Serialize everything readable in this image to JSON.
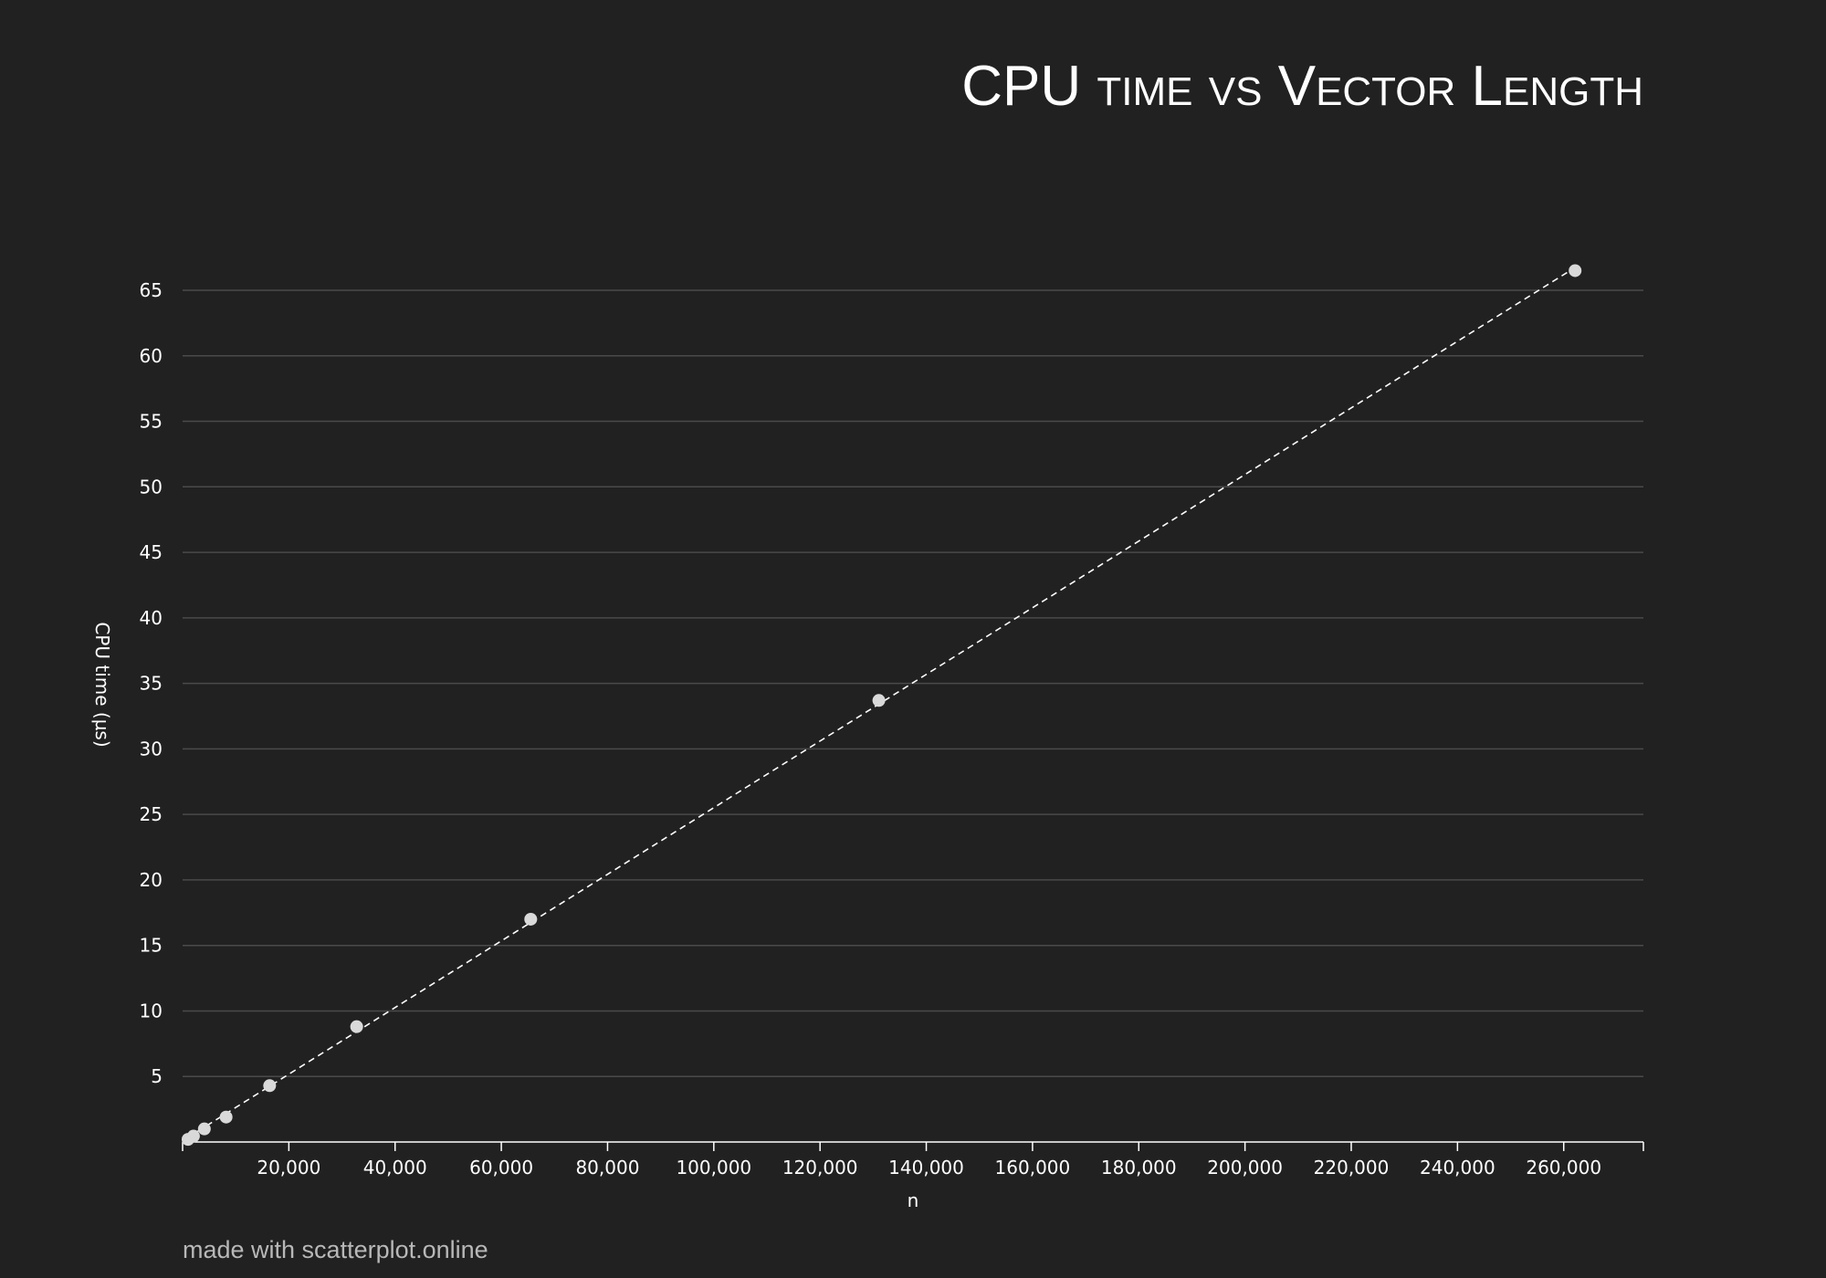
{
  "chart_data": {
    "type": "scatter",
    "title": "CPU time vs Vector Length",
    "xlabel": "n",
    "ylabel": "CPU time (µs)",
    "xlim": [
      0,
      275000
    ],
    "ylim": [
      0,
      65
    ],
    "x_ticks": [
      20000,
      40000,
      60000,
      80000,
      100000,
      120000,
      140000,
      160000,
      180000,
      200000,
      220000,
      240000,
      260000
    ],
    "x_tick_labels": [
      "20,000",
      "40,000",
      "60,000",
      "80,000",
      "100,000",
      "120,000",
      "140,000",
      "160,000",
      "180,000",
      "200,000",
      "220,000",
      "240,000",
      "260,000"
    ],
    "y_ticks": [
      5,
      10,
      15,
      20,
      25,
      30,
      35,
      40,
      45,
      50,
      55,
      60,
      65
    ],
    "y_tick_labels": [
      "5",
      "10",
      "15",
      "20",
      "25",
      "30",
      "35",
      "40",
      "45",
      "50",
      "55",
      "60",
      "65"
    ],
    "grid": "horizontal",
    "trendline": "dashed linear fit",
    "series": [
      {
        "points": [
          {
            "x": 1024,
            "y": 0.2
          },
          {
            "x": 2048,
            "y": 0.45
          },
          {
            "x": 4096,
            "y": 1.0
          },
          {
            "x": 8192,
            "y": 1.9
          },
          {
            "x": 16384,
            "y": 4.3
          },
          {
            "x": 32768,
            "y": 8.8
          },
          {
            "x": 65536,
            "y": 17.0
          },
          {
            "x": 131072,
            "y": 33.7
          },
          {
            "x": 262144,
            "y": 66.5
          }
        ]
      }
    ],
    "colors": {
      "background": "#212121",
      "grid": "#4a4a4a",
      "point": "#d9d9d9",
      "trendline": "#ffffff",
      "text": "#ffffff"
    }
  },
  "footer": {
    "credit": "made with scatterplot.online"
  }
}
